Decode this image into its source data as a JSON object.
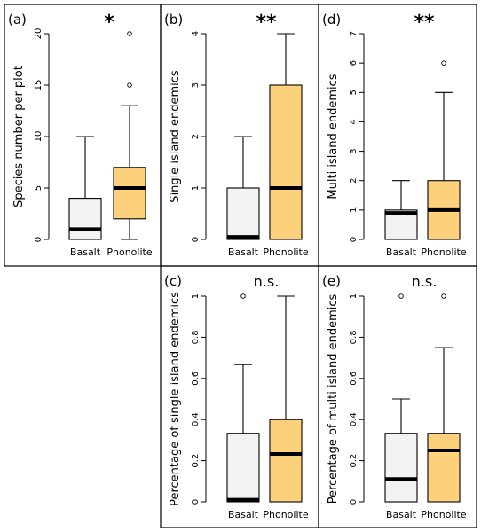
{
  "chart_data": [
    {
      "type": "box",
      "panel_label": "(a)",
      "significance": "*",
      "ylabel": "Species number per plot",
      "ylim": [
        0,
        20
      ],
      "yticks": [
        "0",
        "5",
        "10",
        "15",
        "20"
      ],
      "ytick_values": [
        0,
        5,
        10,
        15,
        20
      ],
      "categories": [
        "Basalt",
        "Phonolite"
      ],
      "boxes": [
        {
          "whisker_low": 0,
          "q1": 0,
          "median": 1,
          "q3": 4,
          "whisker_high": 10,
          "outliers": []
        },
        {
          "whisker_low": 0,
          "q1": 2,
          "median": 5,
          "q3": 7,
          "whisker_high": 13,
          "outliers": [
            15,
            20
          ]
        }
      ]
    },
    {
      "type": "box",
      "panel_label": "(b)",
      "significance": "**",
      "ylabel": "Single island endemics",
      "ylim": [
        0,
        4
      ],
      "yticks": [
        "0",
        "1",
        "2",
        "3",
        "4"
      ],
      "ytick_values": [
        0,
        1,
        2,
        3,
        4
      ],
      "categories": [
        "Basalt",
        "Phonolite"
      ],
      "boxes": [
        {
          "whisker_low": 0,
          "q1": 0,
          "median": 0.05,
          "q3": 1,
          "whisker_high": 2,
          "outliers": []
        },
        {
          "whisker_low": 0,
          "q1": 0,
          "median": 1,
          "q3": 3,
          "whisker_high": 4,
          "outliers": []
        }
      ]
    },
    {
      "type": "box",
      "panel_label": "(d)",
      "significance": "**",
      "ylabel": "Multi island endemics",
      "ylim": [
        0,
        7
      ],
      "yticks": [
        "0",
        "1",
        "2",
        "3",
        "4",
        "5",
        "6",
        "7"
      ],
      "ytick_values": [
        0,
        1,
        2,
        3,
        4,
        5,
        6,
        7
      ],
      "categories": [
        "Basalt",
        "Phonolite"
      ],
      "boxes": [
        {
          "whisker_low": 0,
          "q1": 0,
          "median": 0.9,
          "q3": 1,
          "whisker_high": 2,
          "outliers": []
        },
        {
          "whisker_low": 0,
          "q1": 0,
          "median": 1,
          "q3": 2,
          "whisker_high": 5,
          "outliers": [
            6
          ]
        }
      ]
    },
    {
      "type": "box",
      "panel_label": "(c)",
      "significance": "n.s.",
      "ylabel": "Percentage of single island endemics",
      "ylim": [
        0,
        1
      ],
      "yticks": [
        "0",
        "0.2",
        "0.4",
        "0.6",
        "0.8",
        "1"
      ],
      "ytick_values": [
        0,
        0.2,
        0.4,
        0.6,
        0.8,
        1
      ],
      "categories": [
        "Basalt",
        "Phonolite"
      ],
      "boxes": [
        {
          "whisker_low": 0,
          "q1": 0,
          "median": 0.01,
          "q3": 0.333,
          "whisker_high": 0.667,
          "outliers": [
            1
          ]
        },
        {
          "whisker_low": 0,
          "q1": 0,
          "median": 0.233,
          "q3": 0.4,
          "whisker_high": 1,
          "outliers": []
        }
      ]
    },
    {
      "type": "box",
      "panel_label": "(e)",
      "significance": "n.s.",
      "ylabel": "Percentage of multi island endemics",
      "ylim": [
        0,
        1
      ],
      "yticks": [
        "0",
        "0.2",
        "0.4",
        "0.6",
        "0.8",
        "1"
      ],
      "ytick_values": [
        0,
        0.2,
        0.4,
        0.6,
        0.8,
        1
      ],
      "categories": [
        "Basalt",
        "Phonolite"
      ],
      "boxes": [
        {
          "whisker_low": 0,
          "q1": 0,
          "median": 0.111,
          "q3": 0.333,
          "whisker_high": 0.5,
          "outliers": [
            1
          ]
        },
        {
          "whisker_low": 0,
          "q1": 0,
          "median": 0.25,
          "q3": 0.333,
          "whisker_high": 0.75,
          "outliers": [
            1
          ]
        }
      ]
    }
  ],
  "colors": {
    "basalt_fill": "#f2f2f2",
    "phonolite_fill": "#fdd17b",
    "stroke": "#000000"
  }
}
